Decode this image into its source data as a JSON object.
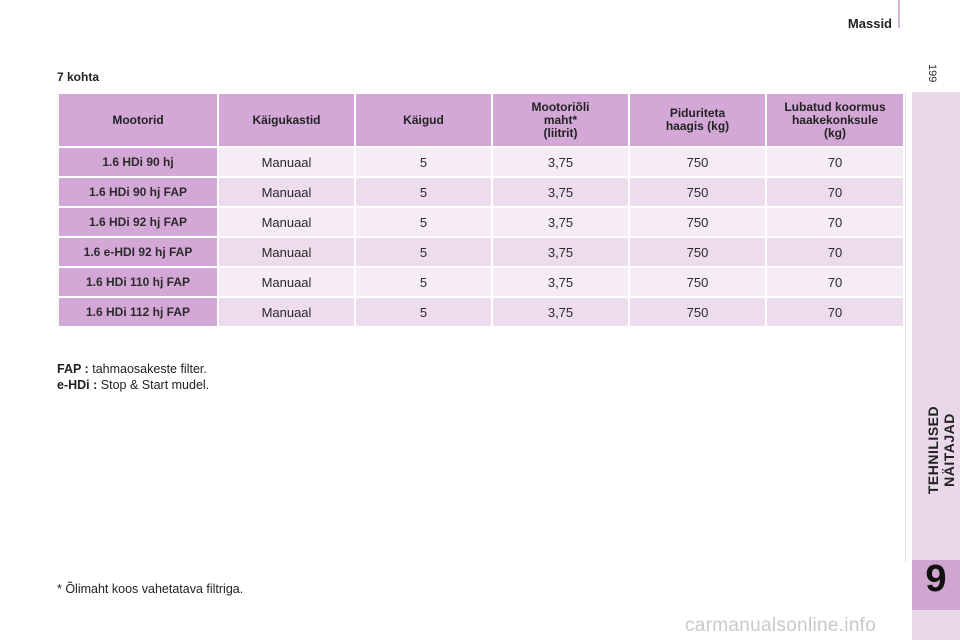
{
  "header": {
    "title": "Massid",
    "page_number": "199"
  },
  "sidebar": {
    "chapter_label": "TEHNILISED NÄITAJAD",
    "chapter_number": "9"
  },
  "section": {
    "title": "7 kohta"
  },
  "table": {
    "headers": [
      "Mootorid",
      "Käigukastid",
      "Käigud",
      "Mootoriõli\nmaht*\n(liitrit)",
      "Piduriteta\nhaagis (kg)",
      "Lubatud koormus\nhaakekonksule\n(kg)"
    ],
    "rows": [
      [
        "1.6 HDi 90 hj",
        "Manuaal",
        "5",
        "3,75",
        "750",
        "70"
      ],
      [
        "1.6 HDi 90 hj FAP",
        "Manuaal",
        "5",
        "3,75",
        "750",
        "70"
      ],
      [
        "1.6 HDi 92 hj FAP",
        "Manuaal",
        "5",
        "3,75",
        "750",
        "70"
      ],
      [
        "1.6 e-HDI 92 hj FAP",
        "Manuaal",
        "5",
        "3,75",
        "750",
        "70"
      ],
      [
        "1.6 HDi 110 hj FAP",
        "Manuaal",
        "5",
        "3,75",
        "750",
        "70"
      ],
      [
        "1.6 HDi 112 hj FAP",
        "Manuaal",
        "5",
        "3,75",
        "750",
        "70"
      ]
    ]
  },
  "notes": [
    {
      "term": "FAP :",
      "text": "tahmaosakeste filter."
    },
    {
      "term": "e-HDi :",
      "text": "Stop & Start mudel."
    }
  ],
  "footnote": "* Õlimaht koos vahetatava filtriga.",
  "watermark": "carmanualsonline.info"
}
